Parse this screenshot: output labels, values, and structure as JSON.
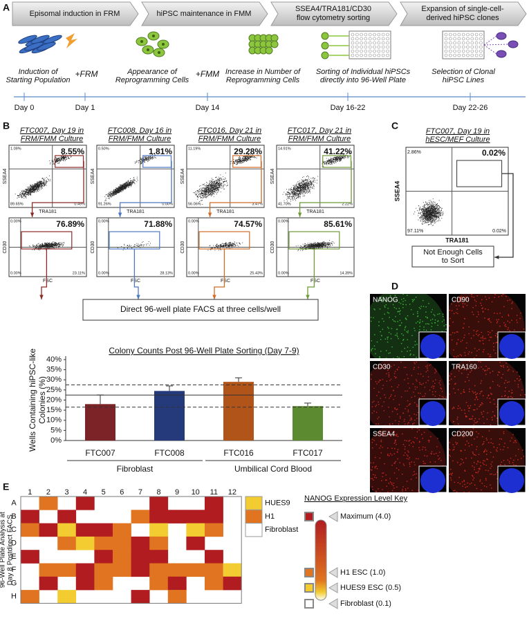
{
  "panel_a": {
    "letter": "A",
    "steps": [
      [
        "Episomal induction in FRM"
      ],
      [
        "hiPSC maintenance in FMM"
      ],
      [
        "SSEA4/TRA181/CD30",
        "flow cytometry sorting"
      ],
      [
        "Expansion of single-cell-",
        "derived hiPSC clones"
      ]
    ],
    "captions": [
      [
        "Induction of",
        "Starting Population"
      ],
      [
        "Appearance of",
        "Reprogramming Cells"
      ],
      [
        "Increase in Number of",
        "Reprogramming Cells"
      ],
      [
        "Sorting of Individual hiPSCs",
        "directly into 96-Well Plate"
      ],
      [
        "Selection of Clonal",
        "hiPSC Lines"
      ]
    ],
    "media": [
      "+FRM",
      "+FMM"
    ],
    "days": [
      "Day 0",
      "Day 1",
      "Day 14",
      "Day 16-22",
      "Day 22-26"
    ]
  },
  "panel_b": {
    "letter": "B",
    "axes": {
      "top_y": "SSEA4",
      "top_x": "TRA181",
      "bottom_y": "CD30",
      "bottom_x": "FSC"
    },
    "plots": [
      {
        "header": [
          "FTC007, Day 19 in",
          "FRM/FMM Culture"
        ],
        "color": "#8b2a25",
        "top": {
          "gate": "8.55%",
          "tl": "1.09%",
          "bl": "89.65%",
          "br": "0.49%"
        },
        "bottom": {
          "gate": "76.89%",
          "tl": "0.00%",
          "bl": "0.00%",
          "br": "23.11%"
        }
      },
      {
        "header": [
          "FTC008, Day 16 in",
          "FRM/FMM Culture"
        ],
        "color": "#4a78c0",
        "top": {
          "gate": "1.81%",
          "tl": "0.50%",
          "bl": "91.26%",
          "br": "0.00%"
        },
        "bottom": {
          "gate": "71.88%",
          "tl": "0.00%",
          "bl": "0.00%",
          "br": "28.13%"
        }
      },
      {
        "header": [
          "FTC016, Day 21 in",
          "FRM/FMM Culture"
        ],
        "color": "#d06a25",
        "top": {
          "gate": "29.28%",
          "tl": "11.19%",
          "bl": "56.06%",
          "br": "3.47%"
        },
        "bottom": {
          "gate": "74.57%",
          "tl": "0.00%",
          "bl": "0.00%",
          "br": "25.43%"
        }
      },
      {
        "header": [
          "FTC017, Day 21 in",
          "FRM/FMM Culture"
        ],
        "color": "#6e9a36",
        "top": {
          "gate": "41.22%",
          "tl": "14.91%",
          "bl": "41.70%",
          "br": "2.22%"
        },
        "bottom": {
          "gate": "85.61%",
          "tl": "0.00%",
          "bl": "0.00%",
          "br": "14.39%"
        }
      }
    ],
    "sort_box": "Direct 96-well plate FACS at three cells/well"
  },
  "chart_data": {
    "type": "bar",
    "title": "Colony Counts Post 96-Well Plate Sorting  (Day 7-9)",
    "y_label": [
      "Wells Containing hiPSC-like",
      "Colonies (%)"
    ],
    "categories": [
      "FTC007",
      "FTC008",
      "FTC016",
      "FTC017"
    ],
    "values": [
      18,
      24.5,
      29,
      17
    ],
    "errors": [
      4.5,
      2.5,
      2,
      1.5
    ],
    "colors": [
      "#7b2326",
      "#253a7a",
      "#b0541a",
      "#5c8a30"
    ],
    "groups": [
      "Fibroblast",
      "Umbilical Cord Blood"
    ],
    "reference_lines": [
      {
        "value": 22.5,
        "style": "solid"
      },
      {
        "value": 27.5,
        "style": "dashed"
      },
      {
        "value": 16.5,
        "style": "dashed"
      }
    ],
    "ylim": [
      0,
      40
    ],
    "yticks": [
      {
        "value": 0,
        "label": "0%"
      },
      {
        "value": 5,
        "label": "5%"
      },
      {
        "value": 10,
        "label": "10%"
      },
      {
        "value": 15,
        "label": "15%"
      },
      {
        "value": 20,
        "label": "20%"
      },
      {
        "value": 25,
        "label": "25%"
      },
      {
        "value": 30,
        "label": "30%"
      },
      {
        "value": 35,
        "label": "35%"
      },
      {
        "value": 40,
        "label": "40%"
      }
    ]
  },
  "panel_c": {
    "letter": "C",
    "header": [
      "FTC007, Day 19 in",
      "hESC/MEF Culture"
    ],
    "gate": "0.02%",
    "tl": "2.86%",
    "bl": "97.11%",
    "br": "0.02%",
    "y_axis": "SSEA4",
    "x_axis": "TRA181",
    "note": [
      "Not Enough Cells",
      "to Sort"
    ]
  },
  "panel_d": {
    "letter": "D",
    "images": [
      {
        "label": "NANOG",
        "color": "#3fb53a"
      },
      {
        "label": "CD90",
        "color": "#d52a20"
      },
      {
        "label": "CD30",
        "color": "#c42a22"
      },
      {
        "label": "TRA160",
        "color": "#d43022"
      },
      {
        "label": "SSEA4",
        "color": "#d02822"
      },
      {
        "label": "CD200",
        "color": "#d42a20"
      }
    ]
  },
  "panel_e": {
    "letter": "E",
    "y_label": [
      "96-Well Plate Analysis at",
      "Day 8 Postdirect FACS"
    ],
    "columns": [
      "1",
      "2",
      "3",
      "4",
      "5",
      "6",
      "7",
      "8",
      "9",
      "10",
      "11",
      "12"
    ],
    "rows": [
      "A",
      "B",
      "C",
      "D",
      "E",
      "F",
      "G",
      "H"
    ],
    "values": [
      [
        null,
        1,
        null,
        4,
        null,
        null,
        null,
        4,
        null,
        null,
        4,
        null
      ],
      [
        4,
        null,
        4,
        null,
        null,
        null,
        1,
        4,
        4,
        4,
        4,
        null
      ],
      [
        1,
        4,
        0.5,
        4,
        4,
        1,
        null,
        0.5,
        null,
        0.5,
        1,
        null
      ],
      [
        null,
        null,
        1,
        0.5,
        1,
        1,
        4,
        1,
        null,
        4,
        null,
        null
      ],
      [
        4,
        null,
        null,
        null,
        4,
        1,
        4,
        4,
        null,
        null,
        4,
        null
      ],
      [
        null,
        1,
        1,
        4,
        1,
        1,
        4,
        1,
        1,
        1,
        1,
        0.5
      ],
      [
        null,
        4,
        null,
        4,
        1,
        null,
        null,
        1,
        4,
        null,
        1,
        4
      ],
      [
        1,
        null,
        0.5,
        null,
        null,
        null,
        4,
        null,
        1,
        null,
        null,
        null
      ]
    ],
    "controls": [
      {
        "name": "HUES9",
        "value": 0.5
      },
      {
        "name": "H1",
        "value": 1
      },
      {
        "name": "Fibroblast",
        "value": 0.1
      }
    ],
    "key": {
      "title": "NANOG Expression Level Key",
      "levels": [
        {
          "label": "Maximum (4.0)",
          "value": 4,
          "color": "#b01c20"
        },
        {
          "label": "H1 ESC (1.0)",
          "value": 1,
          "color": "#e07420"
        },
        {
          "label": "HUES9 ESC (0.5)",
          "value": 0.5,
          "color": "#f2cc30"
        },
        {
          "label": "Fibroblast (0.1)",
          "value": 0.1,
          "color": "#ffffff"
        }
      ]
    }
  }
}
